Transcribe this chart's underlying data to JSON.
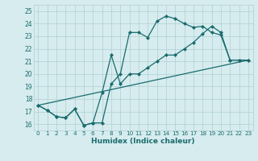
{
  "xlabel": "Humidex (Indice chaleur)",
  "bg_color": "#d6ecee",
  "grid_color": "#b0cfd4",
  "line_color": "#1a6b6e",
  "xlim": [
    -0.5,
    23.5
  ],
  "ylim": [
    15.5,
    25.5
  ],
  "xticks": [
    0,
    1,
    2,
    3,
    4,
    5,
    6,
    7,
    8,
    9,
    10,
    11,
    12,
    13,
    14,
    15,
    16,
    17,
    18,
    19,
    20,
    21,
    22,
    23
  ],
  "yticks": [
    16,
    17,
    18,
    19,
    20,
    21,
    22,
    23,
    24,
    25
  ],
  "line1_x": [
    0,
    1,
    2,
    3,
    4,
    5,
    6,
    7,
    8,
    9,
    10,
    11,
    12,
    13,
    14,
    15,
    16,
    17,
    18,
    19,
    20,
    21,
    22,
    23
  ],
  "line1_y": [
    17.5,
    17.1,
    16.6,
    16.5,
    17.2,
    15.9,
    16.1,
    16.1,
    19.2,
    20.0,
    23.3,
    23.3,
    22.9,
    24.2,
    24.6,
    24.4,
    24.0,
    23.7,
    23.8,
    23.3,
    23.1,
    21.1,
    21.1,
    21.1
  ],
  "line2_x": [
    0,
    1,
    2,
    3,
    4,
    5,
    6,
    7,
    8,
    9,
    10,
    11,
    12,
    13,
    14,
    15,
    16,
    17,
    18,
    19,
    20,
    21,
    22,
    23
  ],
  "line2_y": [
    17.5,
    17.1,
    16.6,
    16.5,
    17.2,
    15.9,
    16.1,
    18.5,
    21.5,
    19.2,
    20.0,
    20.0,
    20.5,
    21.0,
    21.5,
    21.5,
    22.0,
    22.5,
    23.2,
    23.8,
    23.3,
    21.1,
    21.1,
    21.1
  ],
  "line3_x": [
    0,
    23
  ],
  "line3_y": [
    17.5,
    21.1
  ]
}
